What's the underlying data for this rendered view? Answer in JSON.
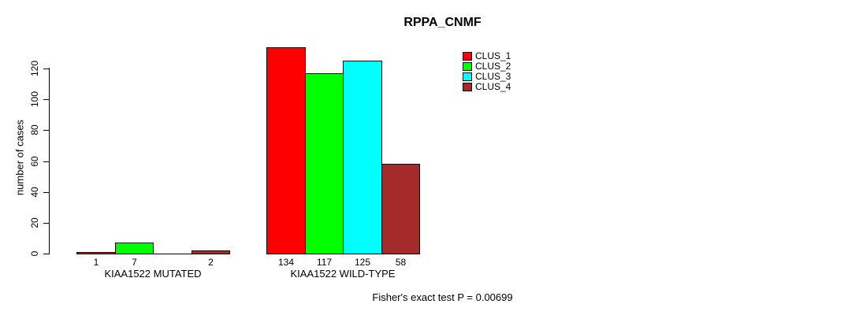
{
  "chart_data": {
    "type": "bar",
    "grouped": true,
    "title": "RPPA_CNMF",
    "ylabel": "number of cases",
    "xlabel": "",
    "ylim": [
      0,
      134
    ],
    "y_ticks": [
      0,
      20,
      40,
      60,
      80,
      100,
      120
    ],
    "categories": [
      "KIAA1522 MUTATED",
      "KIAA1522 WILD-TYPE"
    ],
    "series": [
      {
        "name": "CLUS_1",
        "color": "#FF0000",
        "values": [
          1,
          134
        ]
      },
      {
        "name": "CLUS_2",
        "color": "#00FF00",
        "values": [
          7,
          117
        ]
      },
      {
        "name": "CLUS_3",
        "color": "#00FFFF",
        "values": [
          0,
          125
        ]
      },
      {
        "name": "CLUS_4",
        "color": "#A52A2A",
        "values": [
          2,
          58
        ]
      }
    ],
    "bar_value_labels_shown": true,
    "legend_position": "top-right",
    "grid": false,
    "annotation": "Fisher's exact test P = 0.00699"
  }
}
